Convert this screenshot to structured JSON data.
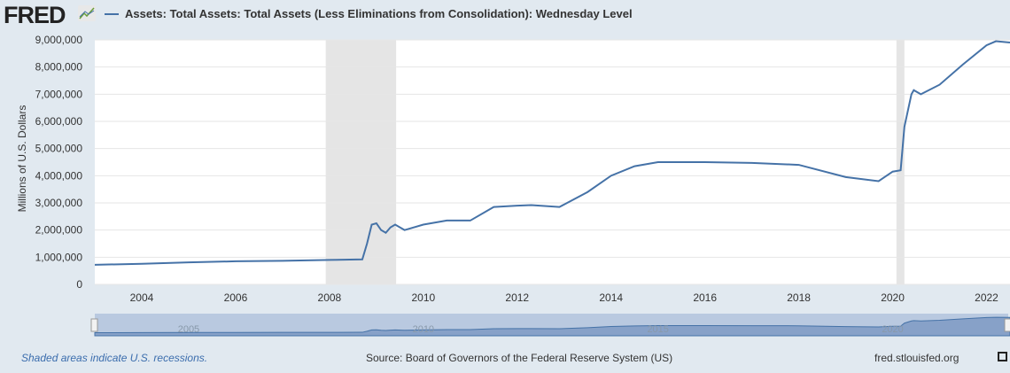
{
  "header": {
    "logo": "FRED",
    "legend_label": "Assets: Total Assets: Total Assets (Less Eliminations from Consolidation): Wednesday Level"
  },
  "footer": {
    "recessions_note": "Shaded areas indicate U.S. recessions.",
    "source": "Source: Board of Governors of the Federal Reserve System (US)",
    "site": "fred.stlouisfed.org"
  },
  "colors": {
    "line": "#4572a7",
    "recession": "#e5e5e5",
    "navigator": "#b9c9e0"
  },
  "chart_data": {
    "type": "line",
    "title": "Assets: Total Assets: Total Assets (Less Eliminations from Consolidation): Wednesday Level",
    "xlabel": "",
    "ylabel": "Millions of U.S. Dollars",
    "xlim": [
      2003.0,
      2022.5
    ],
    "ylim": [
      0,
      9000000
    ],
    "yticks": [
      0,
      1000000,
      2000000,
      3000000,
      4000000,
      5000000,
      6000000,
      7000000,
      8000000,
      9000000
    ],
    "ytick_labels": [
      "0",
      "1,000,000",
      "2,000,000",
      "3,000,000",
      "4,000,000",
      "5,000,000",
      "6,000,000",
      "7,000,000",
      "8,000,000",
      "9,000,000"
    ],
    "xticks": [
      2004,
      2006,
      2008,
      2010,
      2012,
      2014,
      2016,
      2018,
      2020,
      2022
    ],
    "xtick_labels": [
      "2004",
      "2006",
      "2008",
      "2010",
      "2012",
      "2014",
      "2016",
      "2018",
      "2020",
      "2022"
    ],
    "recessions": [
      [
        2007.92,
        2009.42
      ],
      [
        2020.08,
        2020.25
      ]
    ],
    "navigator_labels": [
      {
        "year": 2005,
        "label": "2005"
      },
      {
        "year": 2010,
        "label": "2010"
      },
      {
        "year": 2015,
        "label": "2015"
      },
      {
        "year": 2020,
        "label": "2020"
      }
    ],
    "grid": true,
    "x": [
      2003.0,
      2004.0,
      2005.0,
      2006.0,
      2007.0,
      2008.0,
      2008.7,
      2008.8,
      2008.9,
      2009.0,
      2009.1,
      2009.2,
      2009.3,
      2009.4,
      2009.6,
      2010.0,
      2010.5,
      2011.0,
      2011.5,
      2012.0,
      2012.3,
      2012.9,
      2013.5,
      2014.0,
      2014.5,
      2015.0,
      2016.0,
      2017.0,
      2018.0,
      2019.0,
      2019.7,
      2020.0,
      2020.17,
      2020.25,
      2020.4,
      2020.45,
      2020.6,
      2021.0,
      2021.5,
      2022.0,
      2022.2,
      2022.5
    ],
    "values": [
      720000,
      760000,
      810000,
      850000,
      870000,
      900000,
      920000,
      1500000,
      2200000,
      2250000,
      2000000,
      1900000,
      2100000,
      2200000,
      2000000,
      2200000,
      2350000,
      2350000,
      2850000,
      2900000,
      2920000,
      2850000,
      3400000,
      4000000,
      4350000,
      4500000,
      4500000,
      4470000,
      4400000,
      3950000,
      3800000,
      4150000,
      4200000,
      5800000,
      7000000,
      7150000,
      7000000,
      7350000,
      8100000,
      8800000,
      8950000,
      8900000
    ]
  }
}
